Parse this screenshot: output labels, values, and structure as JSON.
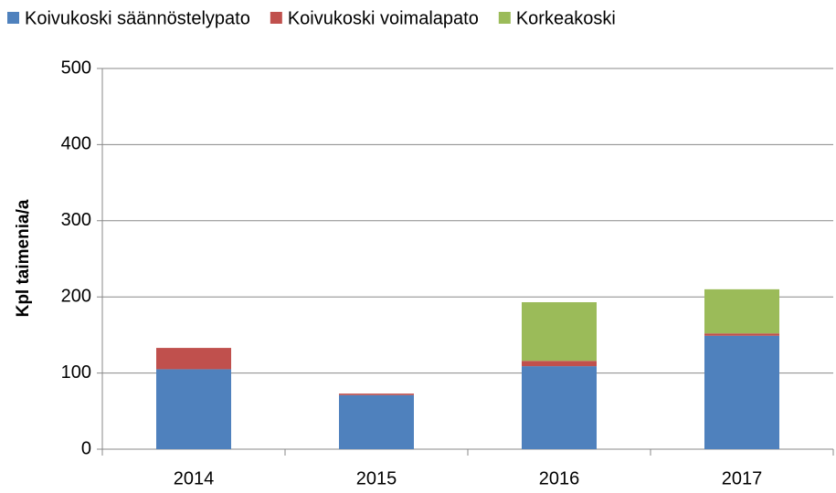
{
  "chart_data": {
    "type": "stacked_bar",
    "y_label": "Kpl taimenia/a",
    "categories": [
      "2014",
      "2015",
      "2016",
      "2017"
    ],
    "series": [
      {
        "name": "Koivukoski säännöstelypato",
        "color": "#4f81bd",
        "values": [
          105,
          71,
          109,
          149
        ]
      },
      {
        "name": "Koivukoski voimalapato",
        "color": "#c0504d",
        "values": [
          28,
          2,
          7,
          3
        ]
      },
      {
        "name": "Korkeakoski",
        "color": "#9bbb59",
        "values": [
          0,
          0,
          77,
          58
        ]
      }
    ],
    "ylim": [
      0,
      500
    ],
    "yticks": [
      0,
      100,
      200,
      300,
      400,
      500
    ],
    "grid": true,
    "legend": "top"
  }
}
